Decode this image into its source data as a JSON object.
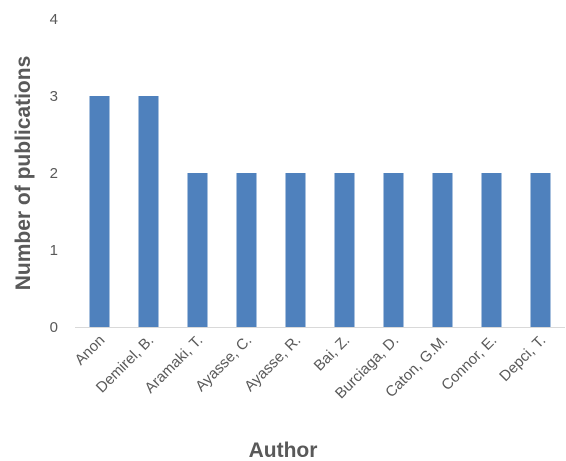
{
  "chart_data": {
    "type": "bar",
    "title": "",
    "xlabel": "Author",
    "ylabel": "Number of publications",
    "categories": [
      "Anon",
      "Demirel, B.",
      "Aramaki, T.",
      "Ayasse, C.",
      "Ayasse, R.",
      "Bai, Z.",
      "Burciaga, D.",
      "Caton, G.M.",
      "Connor, E.",
      "Depci, T."
    ],
    "values": [
      3,
      3,
      2,
      2,
      2,
      2,
      2,
      2,
      2,
      2
    ],
    "ylim": [
      0,
      4
    ],
    "yticks": [
      0,
      1,
      2,
      3,
      4
    ],
    "grid": false,
    "legend": "none",
    "colors": {
      "bar": "#4f81bd",
      "axis": "#d9d9d9",
      "text": "#595959"
    }
  }
}
